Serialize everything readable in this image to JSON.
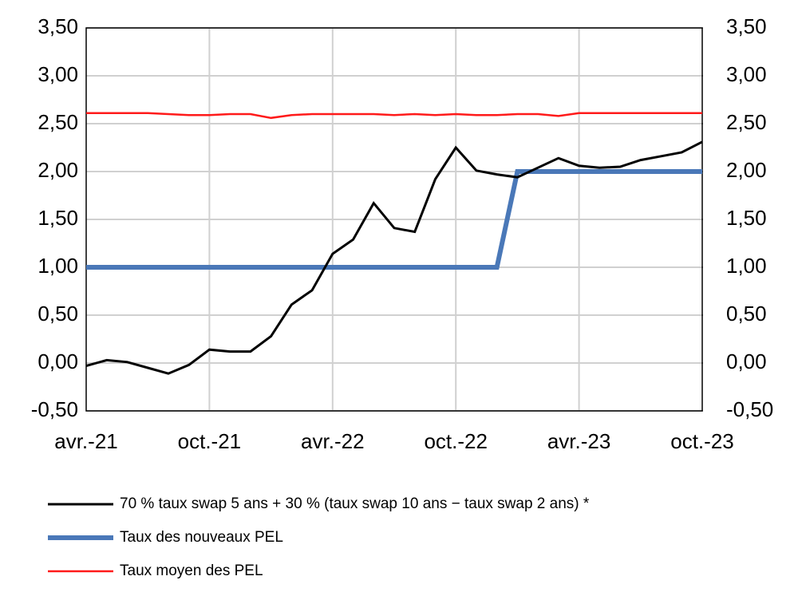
{
  "chart_data": {
    "type": "line",
    "categories": [
      "avr.-21",
      null,
      null,
      null,
      null,
      null,
      "oct.-21",
      null,
      null,
      null,
      null,
      null,
      "avr.-22",
      null,
      null,
      null,
      null,
      null,
      "oct.-22",
      null,
      null,
      null,
      null,
      null,
      "avr.-23",
      null,
      null,
      null,
      null,
      null,
      "oct.-23"
    ],
    "series": [
      {
        "name": "70 % taux swap 5 ans + 30 % (taux swap 10 ans − taux swap 2 ans) *",
        "color": "#000000",
        "width": 3,
        "values": [
          -0.03,
          0.03,
          0.01,
          -0.05,
          -0.11,
          -0.02,
          0.14,
          0.12,
          0.12,
          0.28,
          0.61,
          0.76,
          1.14,
          1.29,
          1.67,
          1.41,
          1.37,
          1.92,
          2.25,
          2.01,
          1.97,
          1.94,
          2.04,
          2.14,
          2.06,
          2.04,
          2.05,
          2.12,
          2.16,
          2.2,
          2.31
        ]
      },
      {
        "name": "Taux des nouveaux PEL",
        "color": "#4a78b8",
        "width": 6,
        "values": [
          1,
          1,
          1,
          1,
          1,
          1,
          1,
          1,
          1,
          1,
          1,
          1,
          1,
          1,
          1,
          1,
          1,
          1,
          1,
          1,
          1,
          2,
          2,
          2,
          2,
          2,
          2,
          2,
          2,
          2,
          2
        ]
      },
      {
        "name": "Taux moyen des PEL",
        "color": "#ff1a1a",
        "width": 2.5,
        "values": [
          2.61,
          2.61,
          2.61,
          2.61,
          2.6,
          2.59,
          2.59,
          2.6,
          2.6,
          2.56,
          2.59,
          2.6,
          2.6,
          2.6,
          2.6,
          2.59,
          2.6,
          2.59,
          2.6,
          2.59,
          2.59,
          2.6,
          2.6,
          2.58,
          2.61,
          2.61,
          2.61,
          2.61,
          2.61,
          2.61,
          2.61
        ]
      }
    ],
    "ylim": [
      -0.5,
      3.5
    ],
    "yticks": [
      {
        "value": -0.5,
        "label": "-0,50"
      },
      {
        "value": 0,
        "label": "0,00"
      },
      {
        "value": 0.5,
        "label": "0,50"
      },
      {
        "value": 1,
        "label": "1,00"
      },
      {
        "value": 1.5,
        "label": "1,50"
      },
      {
        "value": 2,
        "label": "2,00"
      },
      {
        "value": 2.5,
        "label": "2,50"
      },
      {
        "value": 3,
        "label": "3,00"
      },
      {
        "value": 3.5,
        "label": "3,50"
      }
    ],
    "y2lim": [
      -0.5,
      3.5
    ],
    "y2ticks": [
      {
        "value": -0.5,
        "label": "-0,50"
      },
      {
        "value": 0,
        "label": "0,00"
      },
      {
        "value": 0.5,
        "label": "0,50"
      },
      {
        "value": 1,
        "label": "1,00"
      },
      {
        "value": 1.5,
        "label": "1,50"
      },
      {
        "value": 2,
        "label": "2,00"
      },
      {
        "value": 2.5,
        "label": "2,50"
      },
      {
        "value": 3,
        "label": "3,00"
      },
      {
        "value": 3.5,
        "label": "3,50"
      }
    ],
    "grid": true
  }
}
